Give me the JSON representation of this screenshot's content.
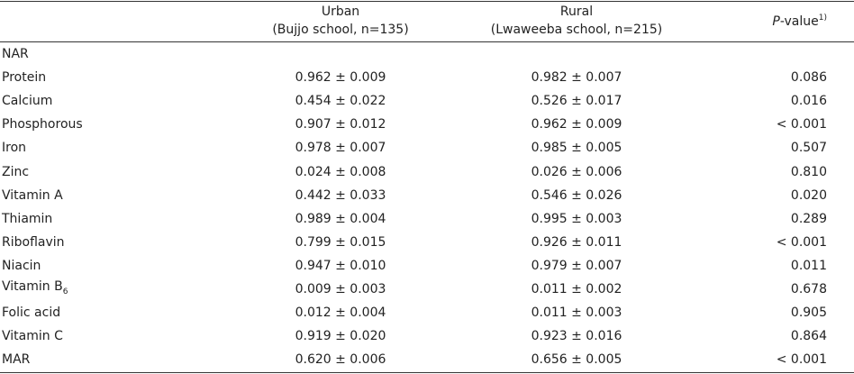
{
  "header": {
    "columns": [
      {
        "line1": "Urban",
        "line2": "(Bujjo school, n=135)"
      },
      {
        "line1": "Rural",
        "line2": "(Lwaweeba school, n=215)"
      },
      {
        "italic": "P",
        "text": "-value",
        "sup": "1)"
      }
    ]
  },
  "table": {
    "section": "NAR",
    "rows": [
      {
        "label": "Protein",
        "urban": "0.962 ± 0.009",
        "rural": "0.982 ± 0.007",
        "p": "0.086"
      },
      {
        "label": "Calcium",
        "urban": "0.454 ± 0.022",
        "rural": "0.526 ± 0.017",
        "p": "0.016"
      },
      {
        "label": "Phosphorous",
        "urban": "0.907 ± 0.012",
        "rural": "0.962 ± 0.009",
        "p": "< 0.001"
      },
      {
        "label": "Iron",
        "urban": "0.978 ± 0.007",
        "rural": "0.985 ± 0.005",
        "p": "0.507"
      },
      {
        "label": "Zinc",
        "urban": "0.024 ± 0.008",
        "rural": "0.026 ± 0.006",
        "p": "0.810"
      },
      {
        "label": "Vitamin A",
        "urban": "0.442 ± 0.033",
        "rural": "0.546 ± 0.026",
        "p": "0.020"
      },
      {
        "label": "Thiamin",
        "urban": "0.989 ± 0.004",
        "rural": "0.995 ± 0.003",
        "p": "0.289"
      },
      {
        "label": "Riboflavin",
        "urban": "0.799 ± 0.015",
        "rural": "0.926 ± 0.011",
        "p": "< 0.001"
      },
      {
        "label": "Niacin",
        "urban": "0.947 ± 0.010",
        "rural": "0.979 ± 0.007",
        "p": "0.011"
      },
      {
        "label": "Vitamin B",
        "label_sub": "6",
        "urban": "0.009 ± 0.003",
        "rural": "0.011 ± 0.002",
        "p": "0.678"
      },
      {
        "label": "Folic acid",
        "urban": "0.012 ± 0.004",
        "rural": "0.011 ± 0.003",
        "p": "0.905"
      },
      {
        "label": "Vitamin C",
        "urban": "0.919 ± 0.020",
        "rural": "0.923 ± 0.016",
        "p": "0.864"
      },
      {
        "label": "MAR",
        "urban": "0.620 ± 0.006",
        "rural": "0.656 ± 0.005",
        "p": "< 0.001"
      }
    ]
  }
}
